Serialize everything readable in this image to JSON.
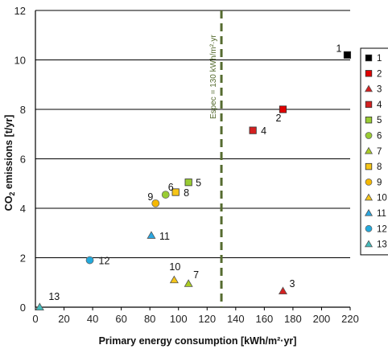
{
  "chart_data": {
    "type": "scatter",
    "xlabel": "Primary energy consumption [kWh/m²·yr]",
    "ylabel_main": "CO",
    "ylabel_sub": "2",
    "ylabel_rest": " emissions [t/yr]",
    "xlim": [
      0,
      220
    ],
    "ylim": [
      0,
      12
    ],
    "x_ticks": [
      0,
      20,
      40,
      60,
      80,
      100,
      120,
      140,
      160,
      180,
      200,
      220
    ],
    "y_ticks": [
      0,
      2,
      4,
      6,
      8,
      10,
      12
    ],
    "grid": "horizontal",
    "legend_position": "right",
    "reference_line": {
      "x": 130,
      "label": "Espec = 130 kWh/m²·yr",
      "color": "#556b2f"
    },
    "series": [
      {
        "name": "1",
        "x": 218,
        "y": 10.2,
        "marker": "square",
        "color": "#000000"
      },
      {
        "name": "2",
        "x": 173,
        "y": 8.0,
        "marker": "square",
        "color": "#e00000"
      },
      {
        "name": "3",
        "x": 173,
        "y": 0.65,
        "marker": "triangle",
        "color": "#d42020"
      },
      {
        "name": "4",
        "x": 152,
        "y": 7.15,
        "marker": "square",
        "color": "#d42020"
      },
      {
        "name": "5",
        "x": 107,
        "y": 5.05,
        "marker": "square",
        "color": "#99cc33"
      },
      {
        "name": "6",
        "x": 91,
        "y": 4.55,
        "marker": "circle",
        "color": "#99cc33"
      },
      {
        "name": "7",
        "x": 107,
        "y": 0.95,
        "marker": "triangle",
        "color": "#aacc22"
      },
      {
        "name": "8",
        "x": 98,
        "y": 4.65,
        "marker": "square",
        "color": "#f5c518"
      },
      {
        "name": "9",
        "x": 84,
        "y": 4.2,
        "marker": "circle",
        "color": "#f5b800"
      },
      {
        "name": "10",
        "x": 97,
        "y": 1.1,
        "marker": "triangle",
        "color": "#f5c518"
      },
      {
        "name": "11",
        "x": 81,
        "y": 2.9,
        "marker": "triangle",
        "color": "#2aa6e0"
      },
      {
        "name": "12",
        "x": 38,
        "y": 1.9,
        "marker": "circle",
        "color": "#22aadd"
      },
      {
        "name": "13",
        "x": 3,
        "y": 0.0,
        "marker": "triangle",
        "color": "#44bbbb"
      }
    ]
  }
}
